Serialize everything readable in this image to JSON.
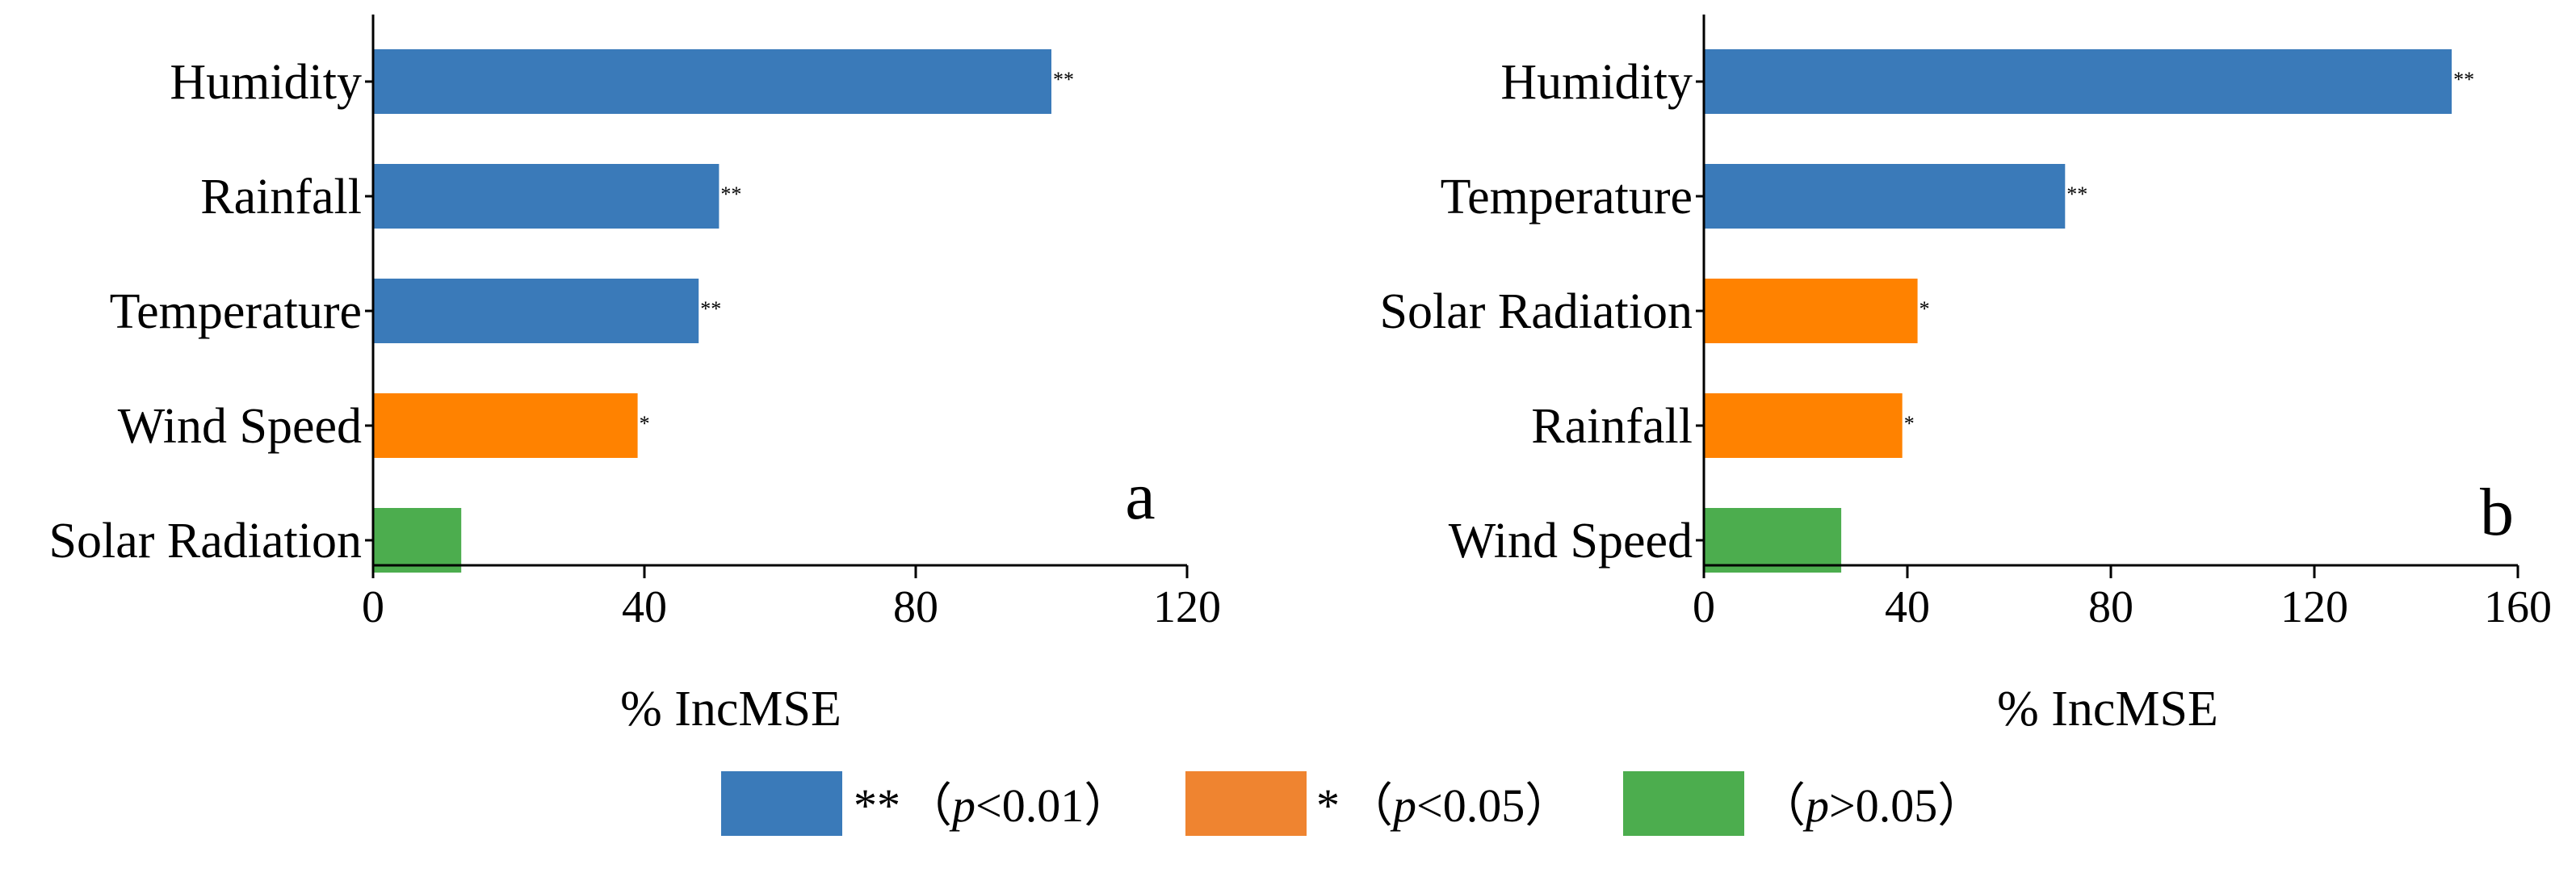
{
  "chart_data": [
    {
      "type": "bar",
      "orientation": "horizontal",
      "panel_label": "a",
      "categories": [
        "Humidity",
        "Rainfall",
        "Temperature",
        "Wind Speed",
        "Solar Radiation"
      ],
      "values": [
        100,
        51,
        48,
        39,
        13
      ],
      "significance": [
        "**",
        "**",
        "**",
        "*",
        ""
      ],
      "color_keys": [
        "p001",
        "p001",
        "p001",
        "p005",
        "ns"
      ],
      "xlabel": "% IncMSE",
      "xlim": [
        0,
        120
      ],
      "xticks": [
        0,
        40,
        80,
        120
      ],
      "grid": false
    },
    {
      "type": "bar",
      "orientation": "horizontal",
      "panel_label": "b",
      "categories": [
        "Humidity",
        "Temperature",
        "Solar Radiation",
        "Rainfall",
        "Wind Speed"
      ],
      "values": [
        147,
        71,
        42,
        39,
        27
      ],
      "significance": [
        "**",
        "**",
        "*",
        "*",
        ""
      ],
      "color_keys": [
        "p001",
        "p001",
        "p005",
        "p005",
        "ns"
      ],
      "xlabel": "% IncMSE",
      "xlim": [
        0,
        160
      ],
      "xticks": [
        0,
        40,
        80,
        120,
        160
      ],
      "grid": false
    }
  ],
  "colors": {
    "p001": "#3a7ab9",
    "p005": "#ff8200",
    "ns": "#4cad4e",
    "legend_p001": "#3a7ab9",
    "legend_p005": "#ef8430",
    "legend_ns": "#4cad4e"
  },
  "legend": {
    "items": [
      {
        "key": "p001",
        "stars": "**",
        "open": "（",
        "p": "p",
        "cond": "<0.01",
        "close": "）"
      },
      {
        "key": "p005",
        "stars": "*",
        "open": "（",
        "p": "p",
        "cond": "<0.05",
        "close": "）"
      },
      {
        "key": "ns",
        "stars": "",
        "open": "（",
        "p": "p",
        "cond": ">0.05",
        "close": "）"
      }
    ]
  }
}
